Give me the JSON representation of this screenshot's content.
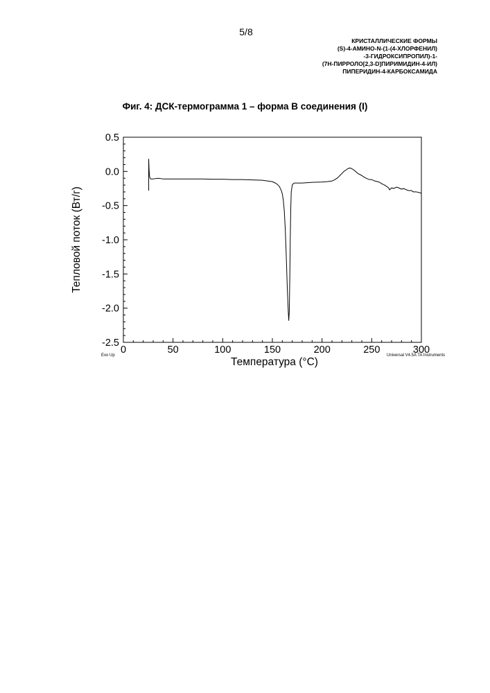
{
  "page": {
    "number": "5/8",
    "header_lines": [
      "КРИСТАЛЛИЧЕСКИЕ ФОРМЫ",
      "(S)-4-АМИНО-N-(1-(4-ХЛОРФЕНИЛ)",
      "-3-ГИДРОКСИПРОПИЛ)-1-",
      "(7H-ПИРРОЛО[2,3-D]ПИРИМИДИН-4-ИЛ)",
      "ПИПЕРИДИН-4-КАРБОКСАМИДА"
    ]
  },
  "chart_data": {
    "type": "line",
    "title": "Фиг. 4: ДСК-термограмма 1 – форма В соединения (I)",
    "xlabel": "Температура (°C)",
    "ylabel": "Тепловой поток (Вт/г)",
    "xlim": [
      0,
      300
    ],
    "ylim": [
      -2.5,
      0.5
    ],
    "x_ticks": [
      0,
      50,
      100,
      150,
      200,
      250,
      300
    ],
    "x_tick_labels": [
      "0",
      "50",
      "100",
      "150",
      "200",
      "250",
      "300"
    ],
    "y_ticks": [
      0.5,
      0.0,
      -0.5,
      -1.0,
      -1.5,
      -2.0,
      -2.5
    ],
    "y_tick_labels": [
      "0.5",
      "0.0",
      "-0.5",
      "-1.0",
      "-1.5",
      "-2.0",
      "-2.5"
    ],
    "grid": false,
    "corner_notes": {
      "left": "Exo Up",
      "right": "Universal V4.5A TA Instruments"
    },
    "series": [
      {
        "x": [
          25.5,
          25.5,
          25.8,
          26.2,
          26.6,
          27.0,
          27.5,
          28,
          30,
          35,
          40,
          50,
          60,
          70,
          80,
          90,
          100,
          110,
          120,
          130,
          140,
          145,
          150,
          153,
          155,
          157,
          159,
          160,
          161,
          162,
          163,
          164,
          165,
          166,
          166.5,
          167,
          167.5,
          168,
          168.5,
          169,
          170,
          171,
          172,
          174,
          176,
          180,
          190,
          200,
          205,
          210,
          213,
          216,
          218,
          220,
          222,
          224,
          226,
          228,
          230,
          233,
          236,
          240,
          243,
          246,
          248,
          250,
          253,
          256,
          258,
          260,
          263,
          265,
          267,
          268,
          270,
          272,
          275,
          277,
          280,
          282,
          285,
          287,
          290,
          292,
          295,
          298,
          300
        ],
        "y": [
          -0.28,
          0.18,
          0.05,
          -0.05,
          -0.09,
          -0.1,
          -0.11,
          -0.11,
          -0.11,
          -0.1,
          -0.11,
          -0.11,
          -0.11,
          -0.11,
          -0.11,
          -0.115,
          -0.115,
          -0.12,
          -0.12,
          -0.125,
          -0.13,
          -0.14,
          -0.15,
          -0.17,
          -0.19,
          -0.22,
          -0.28,
          -0.33,
          -0.42,
          -0.58,
          -0.85,
          -1.25,
          -1.7,
          -2.05,
          -2.18,
          -2.05,
          -1.6,
          -1.0,
          -0.55,
          -0.3,
          -0.2,
          -0.18,
          -0.17,
          -0.17,
          -0.17,
          -0.17,
          -0.16,
          -0.155,
          -0.15,
          -0.14,
          -0.12,
          -0.09,
          -0.06,
          -0.03,
          0.0,
          0.02,
          0.04,
          0.05,
          0.04,
          0.01,
          -0.03,
          -0.06,
          -0.09,
          -0.11,
          -0.12,
          -0.12,
          -0.14,
          -0.15,
          -0.16,
          -0.18,
          -0.2,
          -0.22,
          -0.24,
          -0.27,
          -0.24,
          -0.25,
          -0.23,
          -0.24,
          -0.26,
          -0.25,
          -0.27,
          -0.28,
          -0.28,
          -0.3,
          -0.3,
          -0.31,
          -0.32
        ]
      }
    ]
  }
}
